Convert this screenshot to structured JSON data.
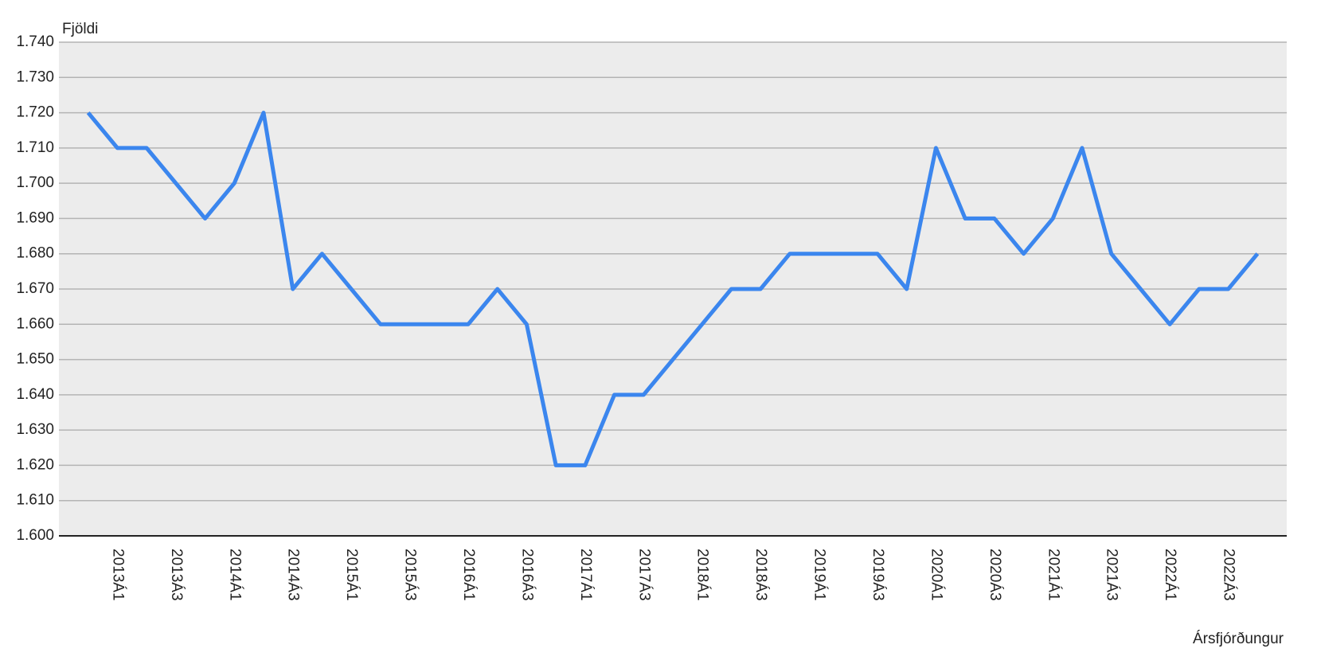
{
  "chart_data": {
    "type": "line",
    "y_label": "Fjöldi",
    "x_label": "Ársfjórðungur",
    "categories": [
      null,
      "2013Á1",
      null,
      "2013Á3",
      null,
      "2014Á1",
      null,
      "2014Á3",
      null,
      "2015Á1",
      null,
      "2015Á3",
      null,
      "2016Á1",
      null,
      "2016Á3",
      null,
      "2017Á1",
      null,
      "2017Á3",
      null,
      "2018Á1",
      null,
      "2018Á3",
      null,
      "2019Á1",
      null,
      "2019Á3",
      null,
      "2020Á1",
      null,
      "2020Á3",
      null,
      "2021Á1",
      null,
      "2021Á3",
      null,
      "2022Á1",
      null,
      "2022Á3",
      null
    ],
    "series": [
      {
        "color": "#3b86ee",
        "values": [
          1720,
          1710,
          1710,
          1700,
          1690,
          1700,
          1720,
          1670,
          1680,
          1670,
          1660,
          1660,
          1660,
          1660,
          1670,
          1660,
          1620,
          1620,
          1640,
          1640,
          1650,
          1660,
          1670,
          1670,
          1680,
          1680,
          1680,
          1680,
          1670,
          1710,
          1690,
          1690,
          1680,
          1690,
          1710,
          1680,
          1670,
          1660,
          1670,
          1670,
          1680
        ]
      }
    ],
    "ylim": [
      1600,
      1740
    ],
    "yticks": [
      {
        "value": 1600,
        "label": "1.600"
      },
      {
        "value": 1610,
        "label": "1.610"
      },
      {
        "value": 1620,
        "label": "1.620"
      },
      {
        "value": 1630,
        "label": "1.630"
      },
      {
        "value": 1640,
        "label": "1.640"
      },
      {
        "value": 1650,
        "label": "1.650"
      },
      {
        "value": 1660,
        "label": "1.660"
      },
      {
        "value": 1670,
        "label": "1.670"
      },
      {
        "value": 1680,
        "label": "1.680"
      },
      {
        "value": 1690,
        "label": "1.690"
      },
      {
        "value": 1700,
        "label": "1.700"
      },
      {
        "value": 1710,
        "label": "1.710"
      },
      {
        "value": 1720,
        "label": "1.720"
      },
      {
        "value": 1730,
        "label": "1.730"
      },
      {
        "value": 1740,
        "label": "1.740"
      }
    ],
    "grid": true
  }
}
